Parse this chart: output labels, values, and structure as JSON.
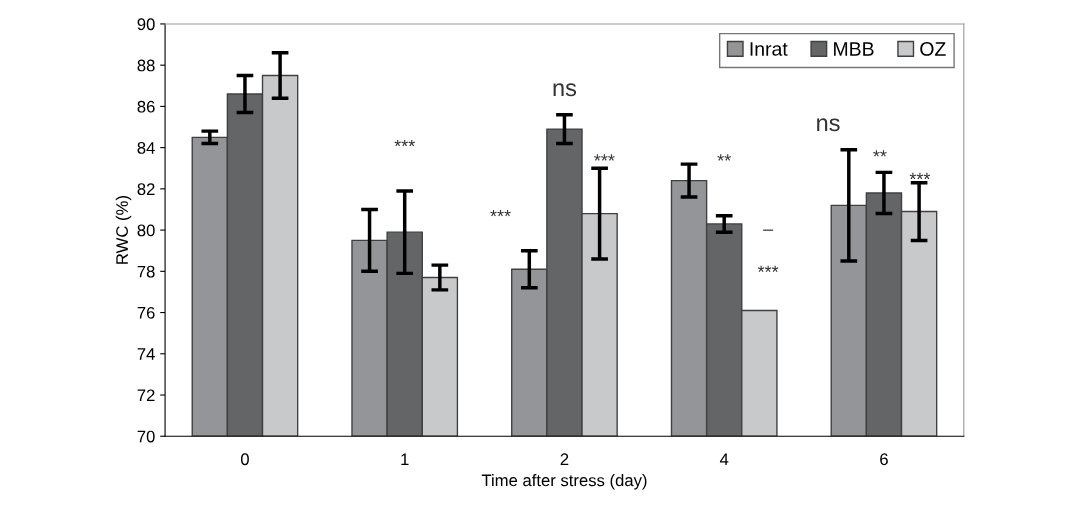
{
  "chart_data": {
    "type": "bar",
    "xlabel": "Time after stress (day)",
    "ylabel": "RWC (%)",
    "categories": [
      "0",
      "1",
      "2",
      "4",
      "6"
    ],
    "series": [
      {
        "name": "Inrat",
        "color": "#949599",
        "values": [
          84.5,
          79.5,
          78.1,
          82.4,
          81.2
        ],
        "errors": [
          0.3,
          1.5,
          0.9,
          0.8,
          2.7
        ]
      },
      {
        "name": "MBB",
        "color": "#646567",
        "values": [
          86.6,
          79.9,
          84.9,
          80.3,
          81.8
        ],
        "errors": [
          0.9,
          2.0,
          0.7,
          0.4,
          1.0
        ]
      },
      {
        "name": "OZ",
        "color": "#c8c9cb",
        "values": [
          87.5,
          77.7,
          80.8,
          76.1,
          80.9
        ],
        "errors": [
          1.1,
          0.6,
          2.2,
          null,
          1.4
        ]
      }
    ],
    "ylim": [
      70,
      90
    ],
    "yticks": [
      70,
      72,
      74,
      76,
      78,
      80,
      82,
      84,
      86,
      88,
      90
    ],
    "legend": "top right",
    "grid": false,
    "annotations": [
      "***",
      "ns",
      "***",
      "***",
      "**",
      "–",
      "***",
      "ns",
      "**",
      "***"
    ]
  }
}
